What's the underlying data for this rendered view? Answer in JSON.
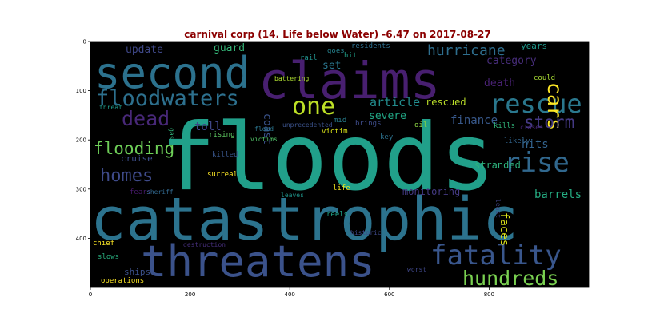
{
  "chart_data": {
    "type": "wordcloud",
    "title": "carnival corp (14. Life below Water) -6.47 on 2017-08-27",
    "title_color": "#8b0000",
    "background": "#000000",
    "xlim": [
      0,
      1000
    ],
    "ylim": [
      500,
      0
    ],
    "x_ticks": [
      0,
      200,
      400,
      600,
      800
    ],
    "y_ticks": [
      0,
      100,
      200,
      300,
      400
    ],
    "words": [
      {
        "text": "floods",
        "weight": 100,
        "color": "#21a08a"
      },
      {
        "text": "catastrophic",
        "weight": 95,
        "color": "#2c738e"
      },
      {
        "text": "claims",
        "weight": 80,
        "color": "#481f70"
      },
      {
        "text": "second",
        "weight": 70,
        "color": "#2c728e"
      },
      {
        "text": "threatens",
        "weight": 65,
        "color": "#3b528b"
      },
      {
        "text": "fatality",
        "weight": 40,
        "color": "#39568c"
      },
      {
        "text": "rescue",
        "weight": 38,
        "color": "#2a788e"
      },
      {
        "text": "rise",
        "weight": 38,
        "color": "#31688e"
      },
      {
        "text": "one",
        "weight": 37,
        "color": "#bddf26"
      },
      {
        "text": "hundreds",
        "weight": 33,
        "color": "#7ad151"
      },
      {
        "text": "floodwaters",
        "weight": 32,
        "color": "#2d708e"
      },
      {
        "text": "dead",
        "weight": 30,
        "color": "#482878"
      },
      {
        "text": "cars",
        "weight": 28,
        "color": "#fde725"
      },
      {
        "text": "homes",
        "weight": 28,
        "color": "#3e4a89"
      },
      {
        "text": "flooding",
        "weight": 28,
        "color": "#6ece58"
      },
      {
        "text": "storm",
        "weight": 26,
        "color": "#443983"
      },
      {
        "text": "hurricane",
        "weight": 24,
        "color": "#2e6e8e"
      },
      {
        "text": "death",
        "weight": 18,
        "color": "#482173"
      },
      {
        "text": "toll",
        "weight": 18,
        "color": "#3f4788"
      },
      {
        "text": "article",
        "weight": 18,
        "color": "#228c8d"
      },
      {
        "text": "finance",
        "weight": 18,
        "color": "#38598c"
      },
      {
        "text": "hits",
        "weight": 18,
        "color": "#33638d"
      },
      {
        "text": "barrels",
        "weight": 17,
        "color": "#25ac82"
      },
      {
        "text": "update",
        "weight": 17,
        "color": "#3f4889"
      },
      {
        "text": "guard",
        "weight": 17,
        "color": "#35b779"
      },
      {
        "text": "category",
        "weight": 16,
        "color": "#472d7b"
      },
      {
        "text": "set",
        "weight": 16,
        "color": "#2a768e"
      },
      {
        "text": "severe",
        "weight": 16,
        "color": "#21a685"
      },
      {
        "text": "faces",
        "weight": 16,
        "color": "#dde318"
      },
      {
        "text": "coast",
        "weight": 15,
        "color": "#3a538b"
      },
      {
        "text": "rescued",
        "weight": 14,
        "color": "#bade28"
      },
      {
        "text": "stranded",
        "weight": 14,
        "color": "#2db27d"
      },
      {
        "text": "monitoring",
        "weight": 14,
        "color": "#443a83"
      },
      {
        "text": "cruise",
        "weight": 12,
        "color": "#3d4e8a"
      },
      {
        "text": "ships",
        "weight": 12,
        "color": "#3b518b"
      },
      {
        "text": "years",
        "weight": 11,
        "color": "#1f988b"
      },
      {
        "text": "could",
        "weight": 10,
        "color": "#a8db34"
      },
      {
        "text": "rail",
        "weight": 10,
        "color": "#21918c"
      },
      {
        "text": "goes",
        "weight": 10,
        "color": "#26828e"
      },
      {
        "text": "hit",
        "weight": 10,
        "color": "#1fa088"
      },
      {
        "text": "residents",
        "weight": 10,
        "color": "#2e6f8e"
      },
      {
        "text": "oil",
        "weight": 10,
        "color": "#8fd744"
      },
      {
        "text": "likely",
        "weight": 10,
        "color": "#32658e"
      },
      {
        "text": "key",
        "weight": 10,
        "color": "#2c718e"
      },
      {
        "text": "victim",
        "weight": 10,
        "color": "#d8e219"
      },
      {
        "text": "brings",
        "weight": 10,
        "color": "#3e4c8a"
      },
      {
        "text": "mid",
        "weight": 9,
        "color": "#277f8e"
      },
      {
        "text": "kills",
        "weight": 9,
        "color": "#31b57b"
      },
      {
        "text": "closes",
        "weight": 9,
        "color": "#482475"
      },
      {
        "text": "unprecedented",
        "weight": 9,
        "color": "#3b528b"
      },
      {
        "text": "flood",
        "weight": 9,
        "color": "#2b748e"
      },
      {
        "text": "victims",
        "weight": 9,
        "color": "#52c569"
      },
      {
        "text": "rising",
        "weight": 10,
        "color": "#5ec962"
      },
      {
        "text": "killed",
        "weight": 10,
        "color": "#39568c"
      },
      {
        "text": "surreal",
        "weight": 10,
        "color": "#fde725"
      },
      {
        "text": "life",
        "weight": 10,
        "color": "#f1e51d"
      },
      {
        "text": "fears",
        "weight": 10,
        "color": "#481a6c"
      },
      {
        "text": "sheriff",
        "weight": 10,
        "color": "#31688e"
      },
      {
        "text": "leaves",
        "weight": 10,
        "color": "#1f958b"
      },
      {
        "text": "reels",
        "weight": 10,
        "color": "#1fa187"
      },
      {
        "text": "least",
        "weight": 9,
        "color": "#414487"
      },
      {
        "text": "historic",
        "weight": 10,
        "color": "#3e4989"
      },
      {
        "text": "destruction",
        "weight": 10,
        "color": "#472f7d"
      },
      {
        "text": "worst",
        "weight": 10,
        "color": "#3f4788"
      },
      {
        "text": "chief",
        "weight": 10,
        "color": "#fde725"
      },
      {
        "text": "slows",
        "weight": 10,
        "color": "#29af7f"
      },
      {
        "text": "operations",
        "weight": 10,
        "color": "#fde725"
      },
      {
        "text": "threat",
        "weight": 9,
        "color": "#1f9a8a"
      },
      {
        "text": "battering",
        "weight": 9,
        "color": "#addc30"
      },
      {
        "text": "gas",
        "weight": 9,
        "color": "#31b57b"
      }
    ]
  }
}
